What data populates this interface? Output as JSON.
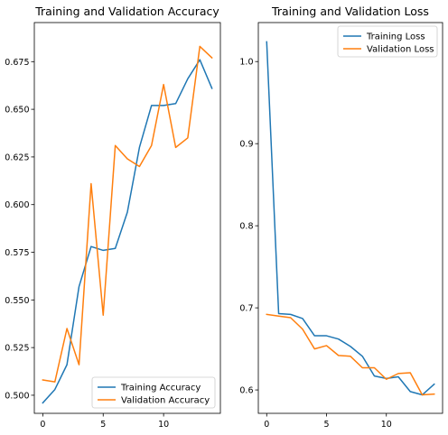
{
  "chart_data": [
    {
      "type": "line",
      "title": "Training and Validation Accuracy",
      "xlabel": "",
      "ylabel": "",
      "xlim": [
        -0.7,
        14.7
      ],
      "ylim": [
        0.4905,
        0.6955
      ],
      "xticks": [
        0,
        5,
        10
      ],
      "yticks": [
        0.5,
        0.525,
        0.55,
        0.575,
        0.6,
        0.625,
        0.65,
        0.675
      ],
      "ytick_labels": [
        "0.500",
        "0.525",
        "0.550",
        "0.575",
        "0.600",
        "0.625",
        "0.650",
        "0.675"
      ],
      "grid": false,
      "legend": "lower-right",
      "x": [
        0,
        1,
        2,
        3,
        4,
        5,
        6,
        7,
        8,
        9,
        10,
        11,
        12,
        13,
        14
      ],
      "series": [
        {
          "name": "Training Accuracy",
          "color": "#1f77b4",
          "values": [
            0.496,
            0.503,
            0.516,
            0.557,
            0.578,
            0.576,
            0.577,
            0.596,
            0.63,
            0.652,
            0.652,
            0.653,
            0.666,
            0.676,
            0.661
          ]
        },
        {
          "name": "Validation Accuracy",
          "color": "#ff7f0e",
          "values": [
            0.508,
            0.507,
            0.535,
            0.516,
            0.611,
            0.542,
            0.631,
            0.624,
            0.62,
            0.631,
            0.663,
            0.63,
            0.635,
            0.683,
            0.677
          ]
        }
      ]
    },
    {
      "type": "line",
      "title": "Training and Validation Loss",
      "xlabel": "",
      "ylabel": "",
      "xlim": [
        -0.7,
        14.7
      ],
      "ylim": [
        0.5715,
        1.0475
      ],
      "xticks": [
        0,
        5,
        10
      ],
      "yticks": [
        0.6,
        0.7,
        0.8,
        0.9,
        1.0
      ],
      "ytick_labels": [
        "0.6",
        "0.7",
        "0.8",
        "0.9",
        "1.0"
      ],
      "grid": false,
      "legend": "upper-right",
      "x": [
        0,
        1,
        2,
        3,
        4,
        5,
        6,
        7,
        8,
        9,
        10,
        11,
        12,
        13,
        14
      ],
      "series": [
        {
          "name": "Training Loss",
          "color": "#1f77b4",
          "values": [
            1.024,
            0.693,
            0.692,
            0.687,
            0.666,
            0.666,
            0.662,
            0.653,
            0.641,
            0.617,
            0.614,
            0.616,
            0.598,
            0.594,
            0.607
          ]
        },
        {
          "name": "Validation Loss",
          "color": "#ff7f0e",
          "values": [
            0.692,
            0.69,
            0.688,
            0.674,
            0.65,
            0.654,
            0.642,
            0.641,
            0.627,
            0.627,
            0.613,
            0.62,
            0.621,
            0.594,
            0.595
          ]
        }
      ]
    }
  ]
}
